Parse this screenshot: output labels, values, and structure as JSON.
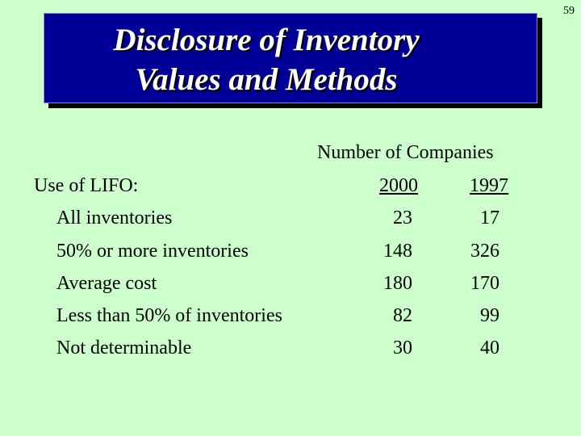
{
  "page_number": "59",
  "title": {
    "line1": "Disclosure of Inventory",
    "line2": "Values and Methods"
  },
  "table": {
    "column_group_header": "Number of Companies",
    "section_label": "Use of LIFO:",
    "years": [
      "2000",
      "1997"
    ],
    "rows": [
      {
        "label": "All inventories",
        "y2000": "23",
        "y1997": "17"
      },
      {
        "label": "50% or more inventories",
        "y2000": "148",
        "y1997": "326"
      },
      {
        "label": "Average cost",
        "y2000": "180",
        "y1997": "170"
      },
      {
        "label": "Less than 50% of inventories",
        "y2000": "82",
        "y1997": "99"
      },
      {
        "label": "Not determinable",
        "y2000": "30",
        "y1997": "40"
      }
    ]
  },
  "colors": {
    "background": "#ccffcc",
    "title_box": "#000099",
    "title_text": "#ffffff"
  }
}
